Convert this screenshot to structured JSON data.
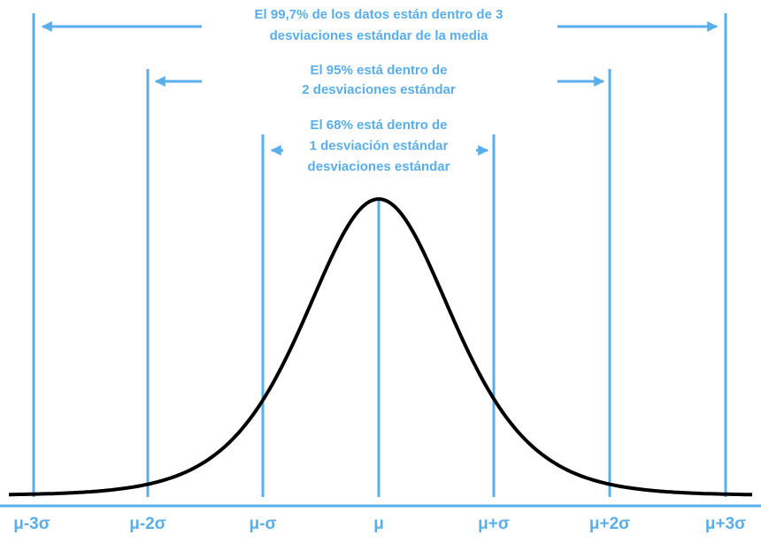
{
  "annotations": [
    {
      "lines": [
        "El 99,7% de los datos están dentro de 3",
        "desviaciones estándar de la media"
      ]
    },
    {
      "lines": [
        "El 95% está dentro de",
        "2 desviaciones estándar"
      ]
    },
    {
      "lines": [
        "El 68% está dentro de",
        "1 desviación estándar",
        "desviaciones estándar"
      ]
    }
  ],
  "axis_labels": [
    "μ-3σ",
    "μ-2σ",
    "μ-σ",
    "μ",
    "μ+σ",
    "μ+2σ",
    "μ+3σ"
  ]
}
